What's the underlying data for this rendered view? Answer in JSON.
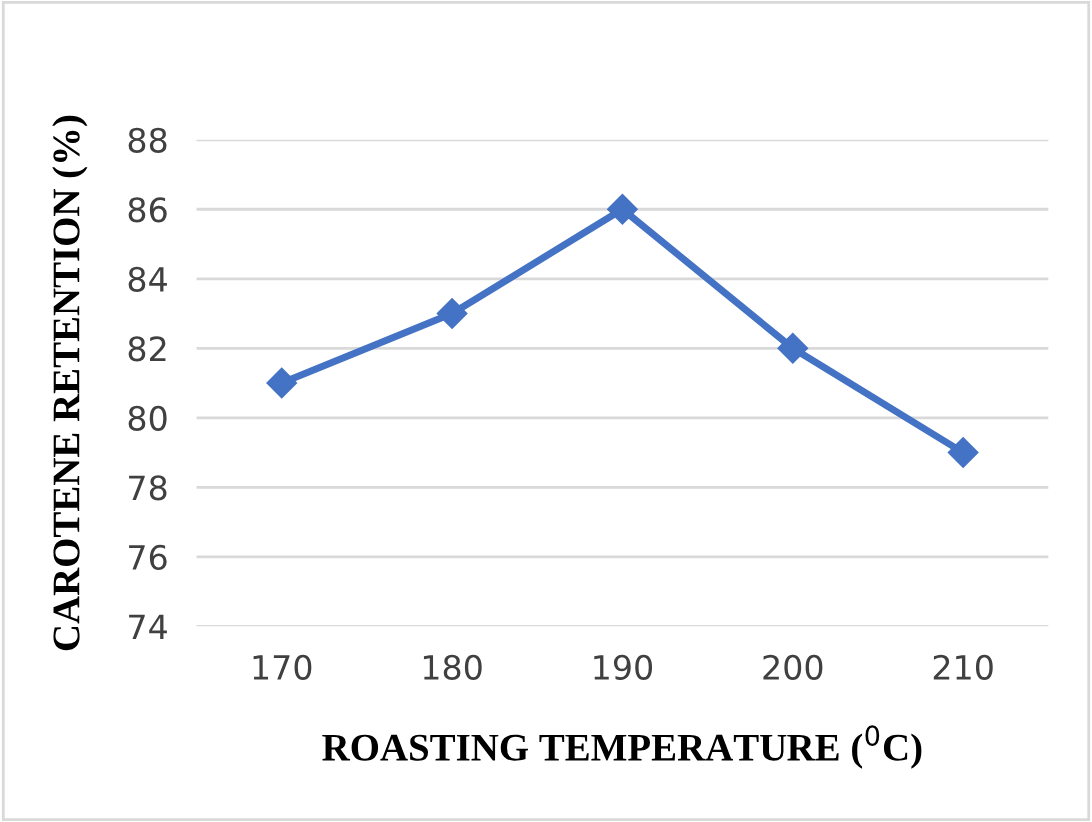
{
  "chart_data": {
    "type": "line",
    "xlabel": "ROASTING TEMPERATURE ($^{0}$C)",
    "ylabel": "CAROTENE RETENTION (%)",
    "categories": [
      "170",
      "180",
      "190",
      "200",
      "210"
    ],
    "series": [
      {
        "color": "#4472c4",
        "values": [
          81,
          83,
          86,
          82,
          79
        ]
      }
    ],
    "ylim": [
      74,
      88
    ],
    "yticks": [
      74,
      76,
      78,
      80,
      82,
      84,
      86,
      88
    ],
    "grid": "y",
    "marker": "diamond",
    "line_style": "solid",
    "legend": false
  }
}
